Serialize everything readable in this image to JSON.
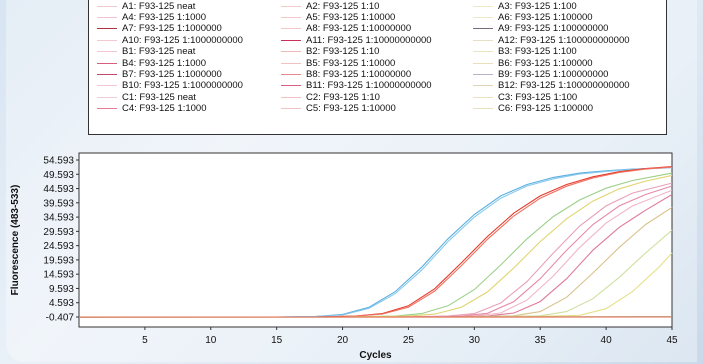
{
  "legend": {
    "entries": [
      {
        "label": "A1: F93-125 neat",
        "color": "#f0c7cf"
      },
      {
        "label": "A2: F93-125 1:10",
        "color": "#f2c9c9"
      },
      {
        "label": "A3: F93-125 1:100",
        "color": "#efe9c6"
      },
      {
        "label": "A4: F93-125 1:1000",
        "color": "#f3c3cf"
      },
      {
        "label": "A5: F93-125 1:10000",
        "color": "#f2c7c7"
      },
      {
        "label": "A6: F93-125 1:100000",
        "color": "#eee8c6"
      },
      {
        "label": "A7: F93-125 1:1000000",
        "color": "#b0303f"
      },
      {
        "label": "A8: F93-125 1:10000000",
        "color": "#f4c6c6"
      },
      {
        "label": "A9: F93-125 1:100000000",
        "color": "#7a6a80"
      },
      {
        "label": "A10: F93-125 1:1000000000",
        "color": "#f3c8d0"
      },
      {
        "label": "A11: F93-125 1:10000000000",
        "color": "#c8305a"
      },
      {
        "label": "A12: F93-125 1:100000000000",
        "color": "#e8dfc2"
      },
      {
        "label": "B1: F93-125 neat",
        "color": "#f0c6d2"
      },
      {
        "label": "B2: F93-125 1:10",
        "color": "#f0b9b9"
      },
      {
        "label": "B3: F93-125 1:100",
        "color": "#ece5c3"
      },
      {
        "label": "B4: F93-125 1:1000",
        "color": "#d65f7a"
      },
      {
        "label": "B5: F93-125 1:10000",
        "color": "#f1c2c2"
      },
      {
        "label": "B6: F93-125 1:100000",
        "color": "#eadfbd"
      },
      {
        "label": "B7: F93-125 1:1000000",
        "color": "#c04a68"
      },
      {
        "label": "B8: F93-125 1:10000000",
        "color": "#e58a8a"
      },
      {
        "label": "B9: F93-125 1:100000000",
        "color": "#b9b2c6"
      },
      {
        "label": "B10: F93-125 1:1000000000",
        "color": "#f2c6d0"
      },
      {
        "label": "B11: F93-125 1:10000000000",
        "color": "#d9607e"
      },
      {
        "label": "B12: F93-125 1:100000000000",
        "color": "#ddd4b6"
      },
      {
        "label": "C1: F93-125 neat",
        "color": "#f1cbd5"
      },
      {
        "label": "C2: F93-125 1:10",
        "color": "#f2c1c1"
      },
      {
        "label": "C3: F93-125 1:100",
        "color": "#ebe3c0"
      },
      {
        "label": "C4: F93-125 1:1000",
        "color": "#e47c96"
      },
      {
        "label": "C5: F93-125 1:10000",
        "color": "#f1c5c5"
      },
      {
        "label": "C6: F93-125 1:100000",
        "color": "#e9e0bf"
      }
    ]
  },
  "chart_data": {
    "type": "line",
    "xlabel": "Cycles",
    "ylabel": "Fluorescence (483-533)",
    "xlim": [
      0,
      45
    ],
    "ylim": [
      -0.407,
      54.593
    ],
    "x_ticks": [
      5,
      10,
      15,
      20,
      25,
      30,
      35,
      40,
      45
    ],
    "y_ticks": [
      "54.593",
      "49.593",
      "44.593",
      "39.593",
      "34.593",
      "29.593",
      "24.593",
      "19.593",
      "14.593",
      "9.593",
      "4.593",
      "-0.407"
    ],
    "grid": false,
    "series": [
      {
        "color": "#5aaee0",
        "x": [
          0,
          15,
          18,
          20,
          22,
          24,
          26,
          28,
          30,
          32,
          34,
          36,
          38,
          40,
          42,
          45
        ],
        "y": [
          -0.4,
          -0.4,
          -0.2,
          0.5,
          3.0,
          8.5,
          17.0,
          27.0,
          35.5,
          42.0,
          46.0,
          48.5,
          50.0,
          50.8,
          51.4,
          52.0
        ]
      },
      {
        "color": "#88c8ec",
        "x": [
          0,
          15,
          18,
          20,
          22,
          24,
          26,
          28,
          30,
          32,
          34,
          36,
          38,
          40,
          42,
          45
        ],
        "y": [
          -0.4,
          -0.4,
          -0.2,
          0.3,
          2.6,
          7.8,
          16.0,
          26.0,
          34.6,
          41.2,
          45.5,
          48.0,
          49.7,
          50.6,
          51.3,
          51.9
        ]
      },
      {
        "color": "#e53a2a",
        "x": [
          0,
          18,
          21,
          23,
          25,
          27,
          29,
          31,
          33,
          35,
          37,
          39,
          41,
          43,
          45
        ],
        "y": [
          -0.4,
          -0.4,
          -0.1,
          0.8,
          3.5,
          9.5,
          18.5,
          27.8,
          36.0,
          42.0,
          46.0,
          48.7,
          50.5,
          51.6,
          52.3
        ]
      },
      {
        "color": "#f07060",
        "x": [
          0,
          18,
          21,
          23,
          25,
          27,
          29,
          31,
          33,
          35,
          37,
          39,
          41,
          43,
          45
        ],
        "y": [
          -0.4,
          -0.4,
          -0.1,
          0.6,
          3.0,
          8.7,
          17.5,
          26.8,
          35.0,
          41.2,
          45.4,
          48.3,
          50.2,
          51.4,
          52.1
        ]
      },
      {
        "color": "#9cd08a",
        "x": [
          0,
          20,
          24,
          26,
          28,
          30,
          32,
          34,
          36,
          38,
          40,
          42,
          45
        ],
        "y": [
          -0.4,
          -0.4,
          -0.1,
          0.8,
          3.5,
          9.2,
          17.8,
          27.0,
          34.8,
          40.6,
          44.7,
          47.4,
          50.0
        ]
      },
      {
        "color": "#e0d470",
        "x": [
          0,
          20,
          25,
          27,
          29,
          31,
          33,
          35,
          37,
          39,
          41,
          43,
          45
        ],
        "y": [
          -0.4,
          -0.4,
          -0.1,
          0.6,
          3.0,
          8.4,
          16.8,
          26.0,
          34.0,
          40.2,
          44.5,
          47.2,
          49.2
        ]
      },
      {
        "color": "#e8a0b8",
        "x": [
          0,
          24,
          28,
          30,
          32,
          34,
          36,
          38,
          40,
          42,
          45
        ],
        "y": [
          -0.4,
          -0.4,
          -0.1,
          0.8,
          4.5,
          12.0,
          22.0,
          31.5,
          38.5,
          43.0,
          46.5
        ]
      },
      {
        "color": "#e78aa6",
        "x": [
          0,
          25,
          29,
          31,
          33,
          35,
          37,
          39,
          41,
          43,
          45
        ],
        "y": [
          -0.4,
          -0.4,
          -0.1,
          0.9,
          5.0,
          13.0,
          23.0,
          32.0,
          38.5,
          42.5,
          45.5
        ]
      },
      {
        "color": "#f0b5c8",
        "x": [
          0,
          26,
          30,
          32,
          34,
          36,
          38,
          40,
          42,
          45
        ],
        "y": [
          -0.4,
          -0.4,
          -0.1,
          1.0,
          5.5,
          14.0,
          24.0,
          32.5,
          38.5,
          44.0
        ]
      },
      {
        "color": "#de7c9a",
        "x": [
          0,
          27,
          31,
          33,
          35,
          37,
          39,
          41,
          43,
          45
        ],
        "y": [
          -0.4,
          -0.4,
          -0.1,
          1.0,
          5.0,
          13.0,
          23.0,
          31.0,
          37.0,
          42.5
        ]
      },
      {
        "color": "#d9c28c",
        "x": [
          0,
          28,
          33,
          35,
          37,
          39,
          41,
          43,
          45
        ],
        "y": [
          -0.4,
          -0.4,
          0.0,
          1.5,
          6.5,
          15.0,
          24.0,
          32.0,
          38.0
        ]
      },
      {
        "color": "#cfe0a0",
        "x": [
          0,
          30,
          35,
          37,
          39,
          41,
          43,
          45
        ],
        "y": [
          -0.4,
          -0.4,
          0.0,
          1.5,
          6.0,
          13.5,
          22.0,
          30.0
        ]
      },
      {
        "color": "#e6e08a",
        "x": [
          0,
          33,
          38,
          40,
          42,
          44,
          45
        ],
        "y": [
          -0.4,
          -0.4,
          0.2,
          2.5,
          8.5,
          17.0,
          22.0
        ]
      },
      {
        "color": "#b8a888",
        "x": [
          0,
          45
        ],
        "y": [
          -0.5,
          -0.3
        ]
      },
      {
        "color": "#e07050",
        "x": [
          0,
          45
        ],
        "y": [
          -0.45,
          -0.4
        ]
      }
    ]
  }
}
